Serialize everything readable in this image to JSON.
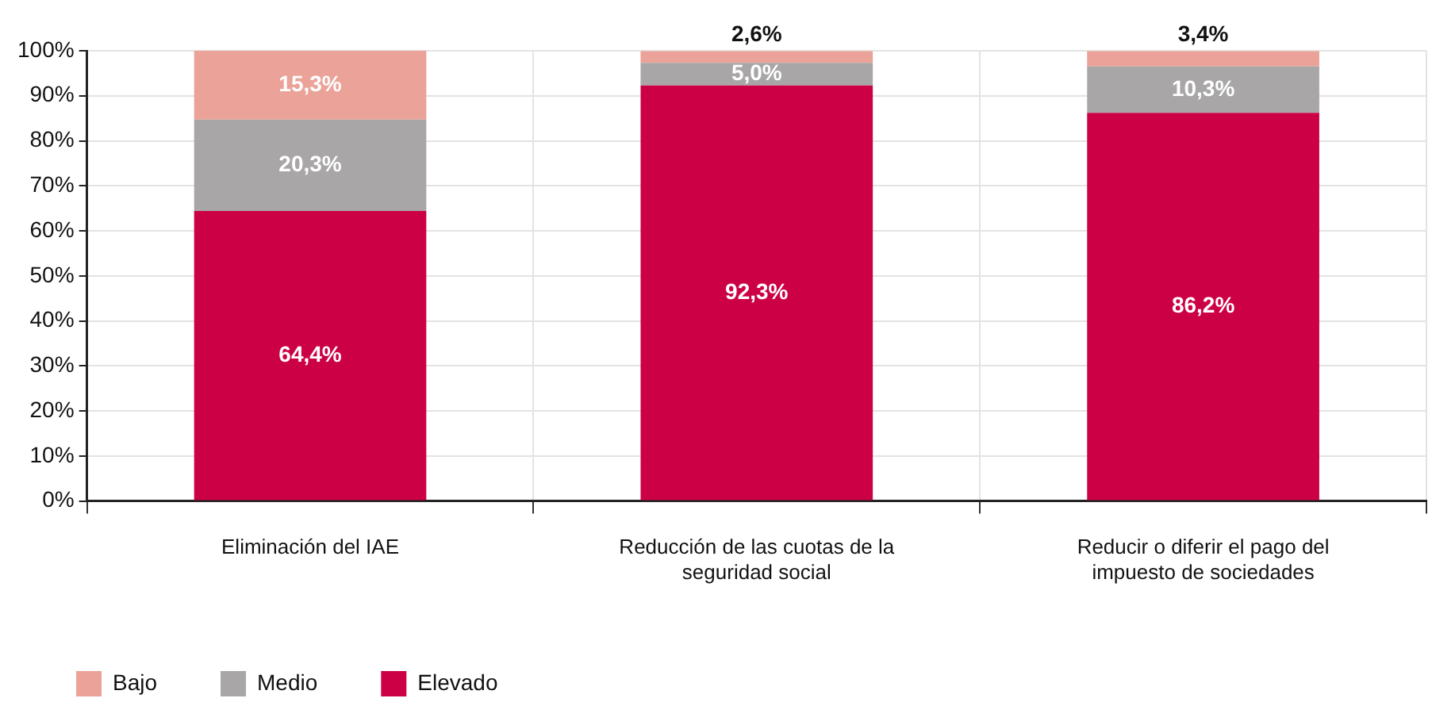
{
  "chart_data": {
    "type": "bar",
    "stacked": true,
    "categories": [
      "Eliminación del IAE",
      "Reducción de las cuotas de la seguridad social",
      "Reducir o diferir el pago del impuesto de sociedades"
    ],
    "series": [
      {
        "name": "Elevado",
        "color": "#cc0044",
        "values": [
          64.4,
          92.3,
          86.2
        ]
      },
      {
        "name": "Medio",
        "color": "#a8a6a7",
        "values": [
          20.3,
          5.0,
          10.3
        ]
      },
      {
        "name": "Bajo",
        "color": "#eba298",
        "values": [
          15.3,
          2.6,
          3.4
        ]
      }
    ],
    "value_labels": [
      [
        "64,4%",
        "92,3%",
        "86,2%"
      ],
      [
        "20,3%",
        "5,0%",
        "10,3%"
      ],
      [
        "15,3%",
        "2,6%",
        "3,4%"
      ]
    ],
    "ylim": [
      0,
      100
    ],
    "yticks": [
      {
        "value": 0,
        "label": "0%"
      },
      {
        "value": 10,
        "label": "10%"
      },
      {
        "value": 20,
        "label": "20%"
      },
      {
        "value": 30,
        "label": "30%"
      },
      {
        "value": 40,
        "label": "40%"
      },
      {
        "value": 50,
        "label": "50%"
      },
      {
        "value": 60,
        "label": "60%"
      },
      {
        "value": 70,
        "label": "70%"
      },
      {
        "value": 80,
        "label": "80%"
      },
      {
        "value": 90,
        "label": "90%"
      },
      {
        "value": 100,
        "label": "100%"
      }
    ],
    "grid": true,
    "legend": "bottom left"
  }
}
